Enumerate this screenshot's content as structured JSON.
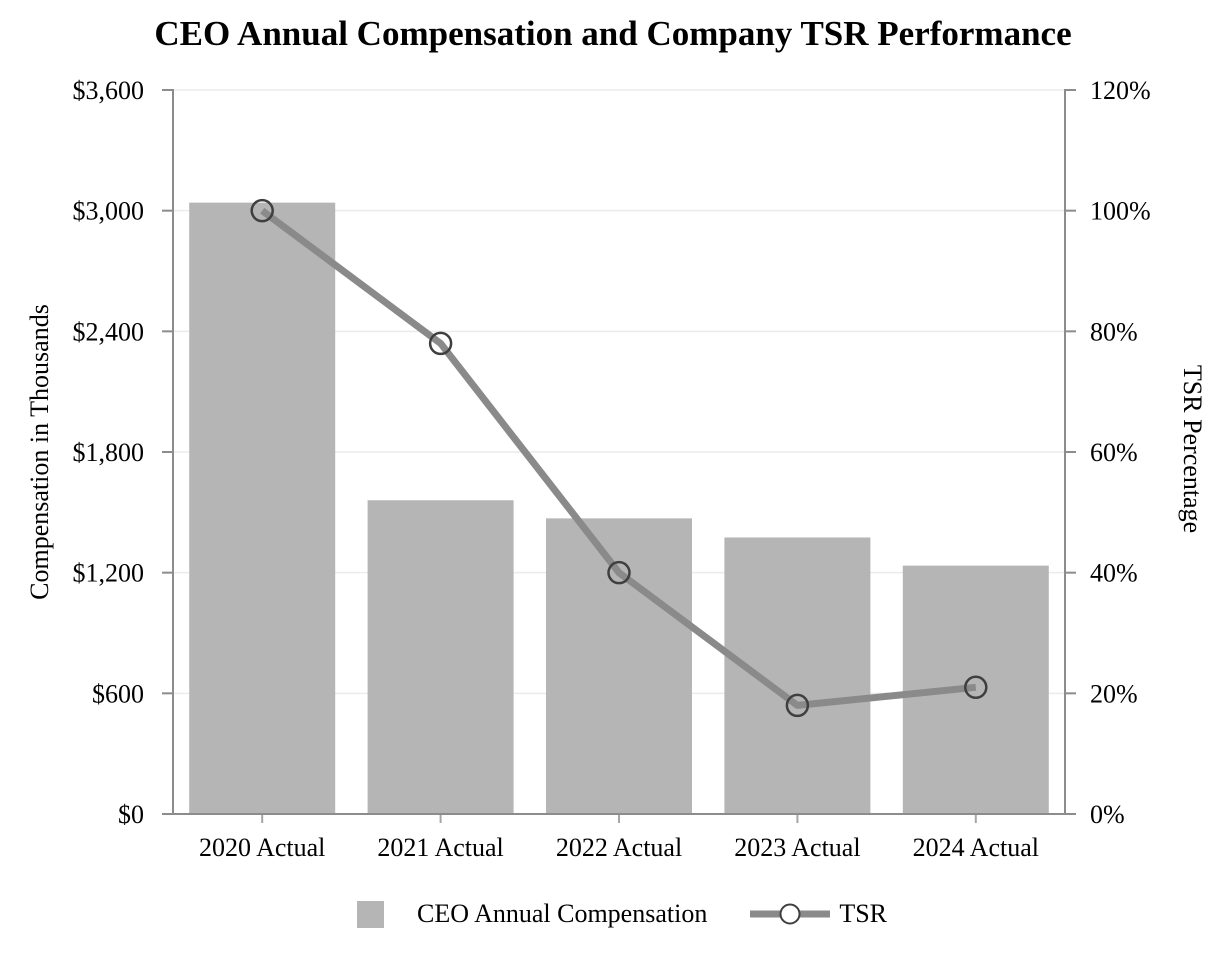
{
  "chart_data": {
    "type": "combo",
    "title": "CEO Annual Compensation and Company TSR Performance",
    "categories": [
      "2020 Actual",
      "2021 Actual",
      "2022 Actual",
      "2023 Actual",
      "2024 Actual"
    ],
    "series": [
      {
        "name": "CEO Annual Compensation",
        "type": "bar",
        "axis": "left",
        "values": [
          3040,
          1560,
          1470,
          1375,
          1235
        ],
        "color": "#b5b5b5"
      },
      {
        "name": "TSR",
        "type": "line",
        "axis": "right",
        "values": [
          100,
          78,
          40,
          18,
          21
        ],
        "color": "#8a8a8a",
        "marker": {
          "shape": "open-circle",
          "ring_color": "#3f3f3f"
        }
      }
    ],
    "left_axis": {
      "title": "Compensation in Thousands",
      "min": 0,
      "max": 3600,
      "step": 600,
      "tick_labels": [
        "$0",
        "$600",
        "$1,200",
        "$1,800",
        "$2,400",
        "$3,000",
        "$3,600"
      ]
    },
    "right_axis": {
      "title": "TSR Percentage",
      "min": 0,
      "max": 120,
      "step": 20,
      "tick_labels": [
        "0%",
        "20%",
        "40%",
        "60%",
        "80%",
        "100%",
        "120%"
      ]
    },
    "grid": true,
    "legend_position": "bottom"
  },
  "colors": {
    "axis_line": "#8c8c8c",
    "gridline": "#ebebeb",
    "y_tick": "#8c8c8c",
    "x_tick": "#a6a6a6",
    "text": "#000000",
    "background": "#ffffff"
  }
}
